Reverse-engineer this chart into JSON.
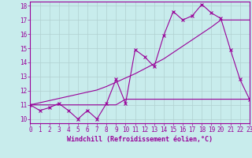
{
  "title": "",
  "xlabel": "Windchill (Refroidissement éolien,°C)",
  "bg_color": "#c8ecec",
  "line_color": "#990099",
  "grid_color": "#b0d0d0",
  "x_data": [
    0,
    1,
    2,
    3,
    4,
    5,
    6,
    7,
    8,
    9,
    10,
    11,
    12,
    13,
    14,
    15,
    16,
    17,
    18,
    19,
    20,
    21,
    22,
    23
  ],
  "y_main": [
    11.0,
    10.6,
    10.8,
    11.1,
    10.6,
    10.0,
    10.6,
    10.0,
    11.1,
    12.8,
    11.1,
    14.9,
    14.4,
    13.7,
    15.9,
    17.6,
    17.0,
    17.3,
    18.1,
    17.5,
    17.1,
    14.9,
    12.8,
    11.4
  ],
  "y_flat": [
    11.0,
    11.0,
    11.0,
    11.0,
    11.0,
    11.0,
    11.0,
    11.0,
    11.0,
    11.0,
    11.4,
    11.4,
    11.4,
    11.4,
    11.4,
    11.4,
    11.4,
    11.4,
    11.4,
    11.4,
    11.4,
    11.4,
    11.4,
    11.4
  ],
  "y_trend": [
    11.0,
    11.15,
    11.3,
    11.45,
    11.6,
    11.75,
    11.9,
    12.05,
    12.3,
    12.6,
    12.9,
    13.2,
    13.55,
    13.9,
    14.25,
    14.7,
    15.15,
    15.6,
    16.05,
    16.5,
    17.0,
    17.0,
    17.0,
    17.0
  ],
  "xlim": [
    0,
    23
  ],
  "ylim": [
    9.7,
    18.3
  ],
  "yticks": [
    10,
    11,
    12,
    13,
    14,
    15,
    16,
    17,
    18
  ],
  "xticks": [
    0,
    1,
    2,
    3,
    4,
    5,
    6,
    7,
    8,
    9,
    10,
    11,
    12,
    13,
    14,
    15,
    16,
    17,
    18,
    19,
    20,
    21,
    22,
    23
  ],
  "tick_fontsize": 5.5,
  "xlabel_fontsize": 6.0
}
